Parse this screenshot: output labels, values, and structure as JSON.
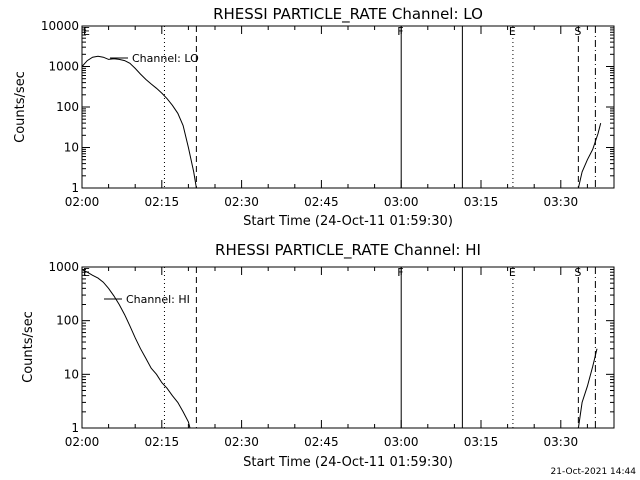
{
  "chart_data": [
    {
      "type": "line",
      "title": "RHESSI PARTICLE_RATE Channel: LO",
      "xlabel": "Start Time (24-Oct-11 01:59:30)",
      "ylabel": "Counts/sec",
      "x_ticks": [
        "02:00",
        "02:15",
        "02:30",
        "02:45",
        "03:00",
        "03:15",
        "03:30"
      ],
      "y_ticks": [
        "1",
        "10",
        "100",
        "1000",
        "10000"
      ],
      "yscale": "log",
      "ylim": [
        1,
        10000
      ],
      "xlim_minutes": [
        0,
        100
      ],
      "grid": false,
      "legend": "top-left",
      "series": [
        {
          "name": "Channel: LO",
          "segments": [
            [
              [
                0,
                1000
              ],
              [
                1,
                1400
              ],
              [
                2,
                1700
              ],
              [
                3,
                1800
              ],
              [
                4,
                1700
              ],
              [
                5,
                1500
              ],
              [
                6,
                1550
              ],
              [
                7,
                1500
              ],
              [
                8,
                1400
              ],
              [
                9,
                1200
              ],
              [
                10,
                900
              ],
              [
                11,
                650
              ],
              [
                12,
                480
              ],
              [
                13,
                370
              ],
              [
                14,
                290
              ],
              [
                15,
                220
              ],
              [
                16,
                160
              ],
              [
                17,
                110
              ],
              [
                18,
                70
              ],
              [
                19,
                35
              ],
              [
                20,
                10
              ],
              [
                21,
                2.5
              ],
              [
                21.5,
                1
              ]
            ],
            [
              [
                93.3,
                1
              ],
              [
                94,
                2.5
              ],
              [
                95,
                5
              ],
              [
                96,
                9
              ],
              [
                97,
                22
              ],
              [
                97.5,
                40
              ]
            ]
          ]
        }
      ],
      "vlines": [
        {
          "t": 15.5,
          "style": "dotted"
        },
        {
          "t": 21.5,
          "style": "dashed"
        },
        {
          "t": 60,
          "style": "solid",
          "label": "F"
        },
        {
          "t": 71.5,
          "style": "solid"
        },
        {
          "t": 81,
          "style": "dotted",
          "label": "E"
        },
        {
          "t": 93.3,
          "style": "dashed",
          "label": "S"
        },
        {
          "t": 96.5,
          "style": "dashdot"
        }
      ],
      "corner_label": "E"
    },
    {
      "type": "line",
      "title": "RHESSI PARTICLE_RATE Channel: HI",
      "xlabel": "Start Time (24-Oct-11 01:59:30)",
      "ylabel": "Counts/sec",
      "x_ticks": [
        "02:00",
        "02:15",
        "02:30",
        "02:45",
        "03:00",
        "03:15",
        "03:30"
      ],
      "y_ticks": [
        "1",
        "10",
        "100",
        "1000"
      ],
      "yscale": "log",
      "ylim": [
        1,
        1000
      ],
      "xlim_minutes": [
        0,
        100
      ],
      "grid": false,
      "legend": "top-left",
      "series": [
        {
          "name": "Channel: HI",
          "segments": [
            [
              [
                0,
                900
              ],
              [
                1,
                800
              ],
              [
                2,
                700
              ],
              [
                3,
                620
              ],
              [
                4,
                520
              ],
              [
                5,
                400
              ],
              [
                6,
                290
              ],
              [
                7,
                200
              ],
              [
                8,
                130
              ],
              [
                9,
                80
              ],
              [
                10,
                48
              ],
              [
                11,
                30
              ],
              [
                12,
                20
              ],
              [
                13,
                13
              ],
              [
                14,
                10
              ],
              [
                15,
                7
              ],
              [
                16,
                5.5
              ],
              [
                17,
                4
              ],
              [
                18,
                3
              ],
              [
                19,
                2
              ],
              [
                20,
                1.3
              ],
              [
                20.3,
                1
              ]
            ],
            [
              [
                93.3,
                1
              ],
              [
                94,
                3
              ],
              [
                95,
                6
              ],
              [
                96,
                14
              ],
              [
                96.8,
                30
              ]
            ]
          ]
        }
      ],
      "vlines": [
        {
          "t": 15.5,
          "style": "dotted"
        },
        {
          "t": 21.5,
          "style": "dashed"
        },
        {
          "t": 60,
          "style": "solid",
          "label": "F"
        },
        {
          "t": 71.5,
          "style": "solid"
        },
        {
          "t": 81,
          "style": "dotted",
          "label": "E"
        },
        {
          "t": 93.3,
          "style": "dashed",
          "label": "S"
        },
        {
          "t": 96.5,
          "style": "dashdot"
        }
      ],
      "corner_label": "E"
    }
  ],
  "footer": {
    "timestamp": "21-Oct-2021 14:44"
  }
}
